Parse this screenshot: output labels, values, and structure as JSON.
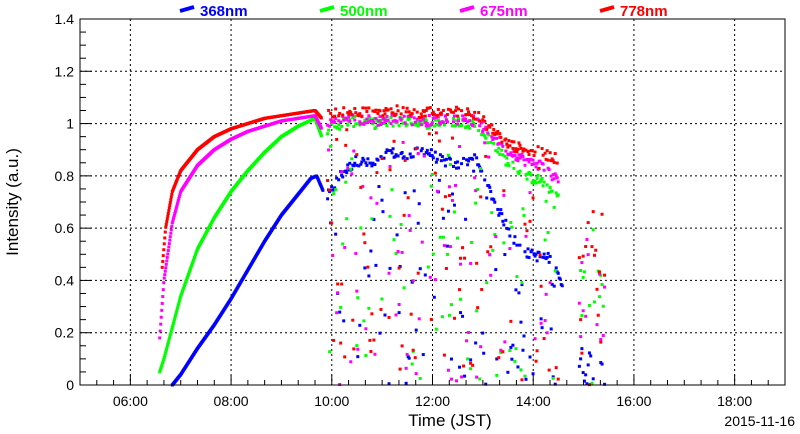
{
  "chart_data": {
    "type": "scatter",
    "title": "",
    "xlabel": "Time (JST)",
    "ylabel": "Intensity (a.u.)",
    "date_label": "2015-11-16",
    "xlim": [
      "05:00",
      "19:00"
    ],
    "ylim": [
      0,
      1.4
    ],
    "grid": true,
    "legend_placement": "top",
    "x_ticks": [
      "06:00",
      "08:00",
      "10:00",
      "12:00",
      "14:00",
      "16:00",
      "18:00"
    ],
    "y_ticks": [
      "0",
      "0.2",
      "0.4",
      "0.6",
      "0.8",
      "1",
      "1.2",
      "1.4"
    ],
    "y_tick_values": [
      0,
      0.2,
      0.4,
      0.6,
      0.8,
      1.0,
      1.2,
      1.4
    ],
    "series": [
      {
        "name": "368nm",
        "color": "#0000ff",
        "smooth": {
          "x": [
            "06:50",
            "07:00",
            "07:20",
            "07:40",
            "08:00",
            "08:20",
            "08:40",
            "09:00",
            "09:20",
            "09:35",
            "09:42",
            "09:50"
          ],
          "y": [
            0.0,
            0.04,
            0.14,
            0.23,
            0.33,
            0.44,
            0.55,
            0.65,
            0.73,
            0.79,
            0.8,
            0.74
          ]
        },
        "noisy": {
          "x": [
            "09:55",
            "10:10",
            "10:30",
            "10:50",
            "11:10",
            "11:30",
            "11:50",
            "12:10",
            "12:30",
            "12:50",
            "13:00",
            "13:20",
            "13:40",
            "13:55",
            "14:10",
            "14:25",
            "14:35"
          ],
          "y": [
            0.72,
            0.8,
            0.86,
            0.84,
            0.89,
            0.87,
            0.9,
            0.86,
            0.84,
            0.87,
            0.8,
            0.66,
            0.54,
            0.5,
            0.49,
            0.48,
            0.38
          ]
        }
      },
      {
        "name": "500nm",
        "color": "#00ff00",
        "smooth": {
          "x": [
            "06:35",
            "06:40",
            "06:50",
            "07:00",
            "07:20",
            "07:40",
            "08:00",
            "08:20",
            "08:40",
            "09:00",
            "09:20",
            "09:40",
            "09:48"
          ],
          "y": [
            0.05,
            0.1,
            0.22,
            0.34,
            0.52,
            0.64,
            0.74,
            0.82,
            0.89,
            0.95,
            0.99,
            1.02,
            0.95
          ]
        },
        "noisy": {
          "x": [
            "09:55",
            "10:20",
            "10:50",
            "11:20",
            "11:50",
            "12:20",
            "12:50",
            "13:10",
            "13:30",
            "13:50",
            "14:10",
            "14:30"
          ],
          "y": [
            0.98,
            1.01,
            1.0,
            1.01,
            1.0,
            1.01,
            1.0,
            0.93,
            0.85,
            0.8,
            0.78,
            0.72
          ]
        }
      },
      {
        "name": "675nm",
        "color": "#ff00ff",
        "smooth": {
          "x": [
            "06:35",
            "06:40",
            "06:50",
            "07:00",
            "07:20",
            "07:40",
            "08:00",
            "08:20",
            "08:40",
            "09:00",
            "09:20",
            "09:40",
            "09:48"
          ],
          "y": [
            0.18,
            0.4,
            0.62,
            0.74,
            0.84,
            0.9,
            0.94,
            0.97,
            0.99,
            1.01,
            1.02,
            1.03,
            0.98
          ]
        },
        "noisy": {
          "x": [
            "09:55",
            "10:20",
            "10:50",
            "11:20",
            "11:50",
            "12:20",
            "12:50",
            "13:10",
            "13:30",
            "13:50",
            "14:10",
            "14:30"
          ],
          "y": [
            1.0,
            1.02,
            1.01,
            1.02,
            1.01,
            1.02,
            1.01,
            0.96,
            0.9,
            0.86,
            0.84,
            0.78
          ]
        }
      },
      {
        "name": "778nm",
        "color": "#ff0000",
        "smooth": {
          "x": [
            "06:38",
            "06:42",
            "06:50",
            "07:00",
            "07:20",
            "07:40",
            "08:00",
            "08:20",
            "08:40",
            "09:00",
            "09:20",
            "09:40",
            "09:48"
          ],
          "y": [
            0.45,
            0.6,
            0.74,
            0.82,
            0.9,
            0.95,
            0.98,
            1.0,
            1.02,
            1.03,
            1.04,
            1.05,
            1.02
          ]
        },
        "noisy": {
          "x": [
            "09:55",
            "10:20",
            "10:50",
            "11:20",
            "11:50",
            "12:20",
            "12:50",
            "13:10",
            "13:30",
            "13:50",
            "14:10",
            "14:30"
          ],
          "y": [
            1.03,
            1.05,
            1.04,
            1.05,
            1.04,
            1.05,
            1.04,
            0.98,
            0.92,
            0.9,
            0.89,
            0.86
          ]
        }
      }
    ],
    "gaps": [
      {
        "start": "09:50",
        "end": "14:30",
        "spread": 0.95
      },
      {
        "start": "14:55",
        "end": "15:25",
        "spread": 0.85
      }
    ]
  }
}
